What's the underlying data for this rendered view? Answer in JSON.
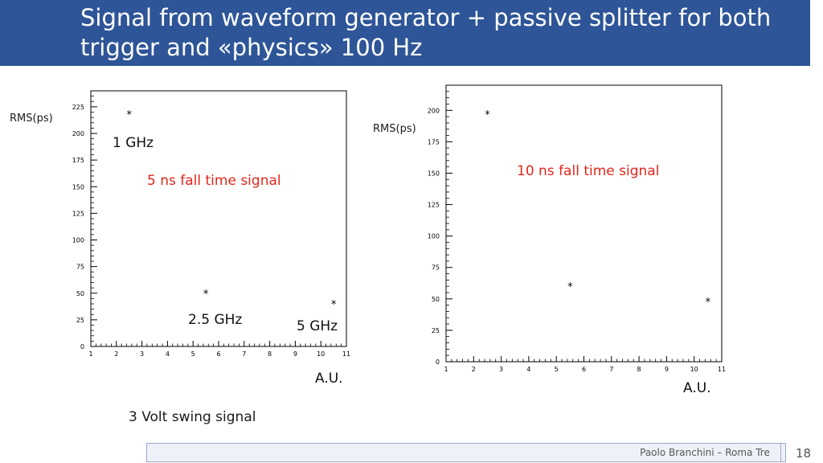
{
  "slide": {
    "title": "Signal from waveform generator + passive splitter for both trigger and «physics» 100 Hz",
    "caption": "3 Volt swing signal",
    "footer_author": "Paolo Branchini – Roma Tre",
    "page_number": "18"
  },
  "annotations": {
    "left_fall_time": "5 ns fall time signal",
    "right_fall_time": "10 ns fall time signal",
    "label_1ghz": "1 GHz",
    "label_2_5ghz": "2.5 GHz",
    "label_5ghz": "5 GHz"
  },
  "colors": {
    "title_bg": "#2e5597",
    "annotation_red": "#e0261c"
  },
  "chart_data": [
    {
      "type": "scatter",
      "ylabel": "RMS(ps)",
      "xlabel": "A.U.",
      "xlim": [
        1,
        11
      ],
      "ylim": [
        0,
        240
      ],
      "xticks": [
        1,
        2,
        3,
        4,
        5,
        6,
        7,
        8,
        9,
        10,
        11
      ],
      "yticks": [
        0,
        25,
        50,
        75,
        100,
        125,
        150,
        175,
        200,
        225
      ],
      "points": [
        {
          "x": 2.5,
          "y": 218
        },
        {
          "x": 5.5,
          "y": 50
        },
        {
          "x": 10.5,
          "y": 40
        }
      ],
      "marker": "*"
    },
    {
      "type": "scatter",
      "ylabel": "RMS(ps)",
      "xlabel": "A.U.",
      "xlim": [
        1,
        11
      ],
      "ylim": [
        0,
        220
      ],
      "xticks": [
        1,
        2,
        3,
        4,
        5,
        6,
        7,
        8,
        9,
        10,
        11
      ],
      "yticks": [
        0,
        25,
        50,
        75,
        100,
        125,
        150,
        175,
        200
      ],
      "points": [
        {
          "x": 2.5,
          "y": 197
        },
        {
          "x": 5.5,
          "y": 60
        },
        {
          "x": 10.5,
          "y": 48
        }
      ],
      "marker": "*"
    }
  ]
}
